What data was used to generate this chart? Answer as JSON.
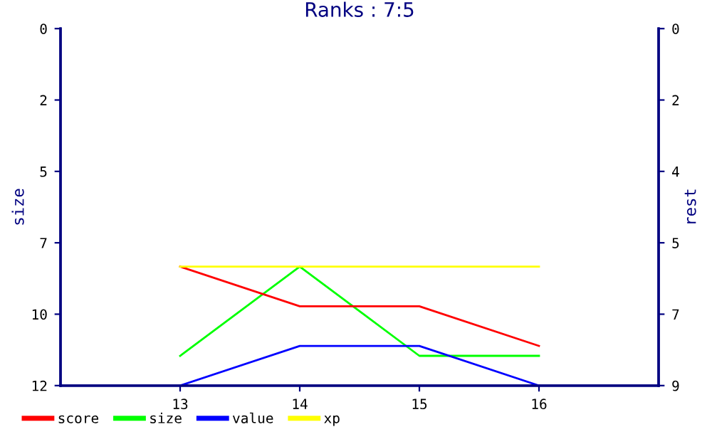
{
  "chart_data": {
    "type": "line",
    "title": "Ranks : 7:5",
    "ylabel": "size",
    "y2label": "rest",
    "x": [
      13,
      14,
      15,
      16
    ],
    "xlim": [
      12,
      17
    ],
    "xticks": [
      13,
      14,
      15,
      16
    ],
    "ylim": [
      12,
      0
    ],
    "yticks": [
      0,
      {
        "value": 2.4,
        "label": "2"
      },
      {
        "value": 4.8,
        "label": "5"
      },
      {
        "value": 7.2,
        "label": "7"
      },
      {
        "value": 9.6,
        "label": "10"
      },
      12
    ],
    "y2lim": [
      9,
      0
    ],
    "y2ticks": [
      0,
      {
        "value": 1.8,
        "label": "2"
      },
      {
        "value": 3.6,
        "label": "4"
      },
      {
        "value": 5.4,
        "label": "5"
      },
      {
        "value": 7.2,
        "label": "7"
      },
      9
    ],
    "series": [
      {
        "name": "score",
        "color": "#ff0000",
        "values": [
          6,
          7,
          7,
          8
        ],
        "axis": "y2"
      },
      {
        "name": "size",
        "color": "#00ff00",
        "values": [
          11,
          8,
          11,
          11
        ]
      },
      {
        "name": "value",
        "color": "#0000ff",
        "values": [
          9,
          8,
          8,
          9
        ],
        "axis": "y2"
      },
      {
        "name": "xp",
        "color": "#ffff00",
        "values": [
          6,
          6,
          6,
          6
        ],
        "axis": "y2"
      }
    ],
    "grid": false,
    "legend": "bottom left",
    "marker": "none",
    "line_style": "solid"
  }
}
